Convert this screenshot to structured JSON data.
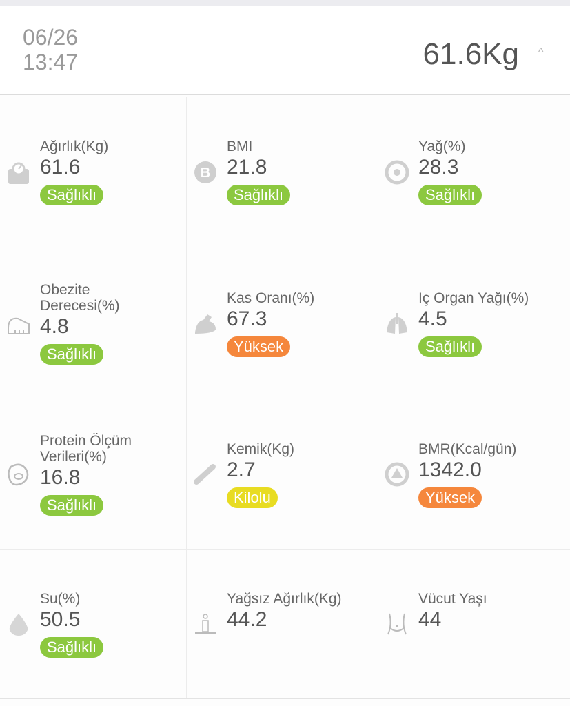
{
  "header": {
    "date": "06/26",
    "time": "13:47",
    "weight": "61.6Kg",
    "chevron": "^"
  },
  "status_colors": {
    "Sağlıklı": "#8cc83f",
    "Yüksek": "#f5873c",
    "Kilolu": "#e8dc22"
  },
  "metrics": [
    {
      "label": "Ağırlık(Kg)",
      "value": "61.6",
      "status": "Sağlıklı",
      "icon": "scale-icon"
    },
    {
      "label": "BMI",
      "value": "21.8",
      "status": "Sağlıklı",
      "icon": "bmi-icon"
    },
    {
      "label": "Yağ(%)",
      "value": "28.3",
      "status": "Sağlıklı",
      "icon": "fat-icon"
    },
    {
      "label": "Obezite Derecesi(%)",
      "value": "4.8",
      "status": "Sağlıklı",
      "icon": "ruler-icon"
    },
    {
      "label": "Kas Oranı(%)",
      "value": "67.3",
      "status": "Yüksek",
      "icon": "muscle-icon"
    },
    {
      "label": "Iç Organ Yağı(%)",
      "value": "4.5",
      "status": "Sağlıklı",
      "icon": "lungs-icon"
    },
    {
      "label": "Protein Ölçüm Verileri(%)",
      "value": "16.8",
      "status": "Sağlıklı",
      "icon": "protein-icon"
    },
    {
      "label": "Kemik(Kg)",
      "value": "2.7",
      "status": "Kilolu",
      "icon": "bone-icon"
    },
    {
      "label": "BMR(Kcal/gün)",
      "value": "1342.0",
      "status": "Yüksek",
      "icon": "bmr-icon"
    },
    {
      "label": "Su(%)",
      "value": "50.5",
      "status": "Sağlıklı",
      "icon": "water-drop-icon"
    },
    {
      "label": "Yağsız Ağırlık(Kg)",
      "value": "44.2",
      "status": "",
      "icon": "person-icon"
    },
    {
      "label": "Vücut Yaşı",
      "value": "44",
      "status": "",
      "icon": "body-icon"
    }
  ]
}
